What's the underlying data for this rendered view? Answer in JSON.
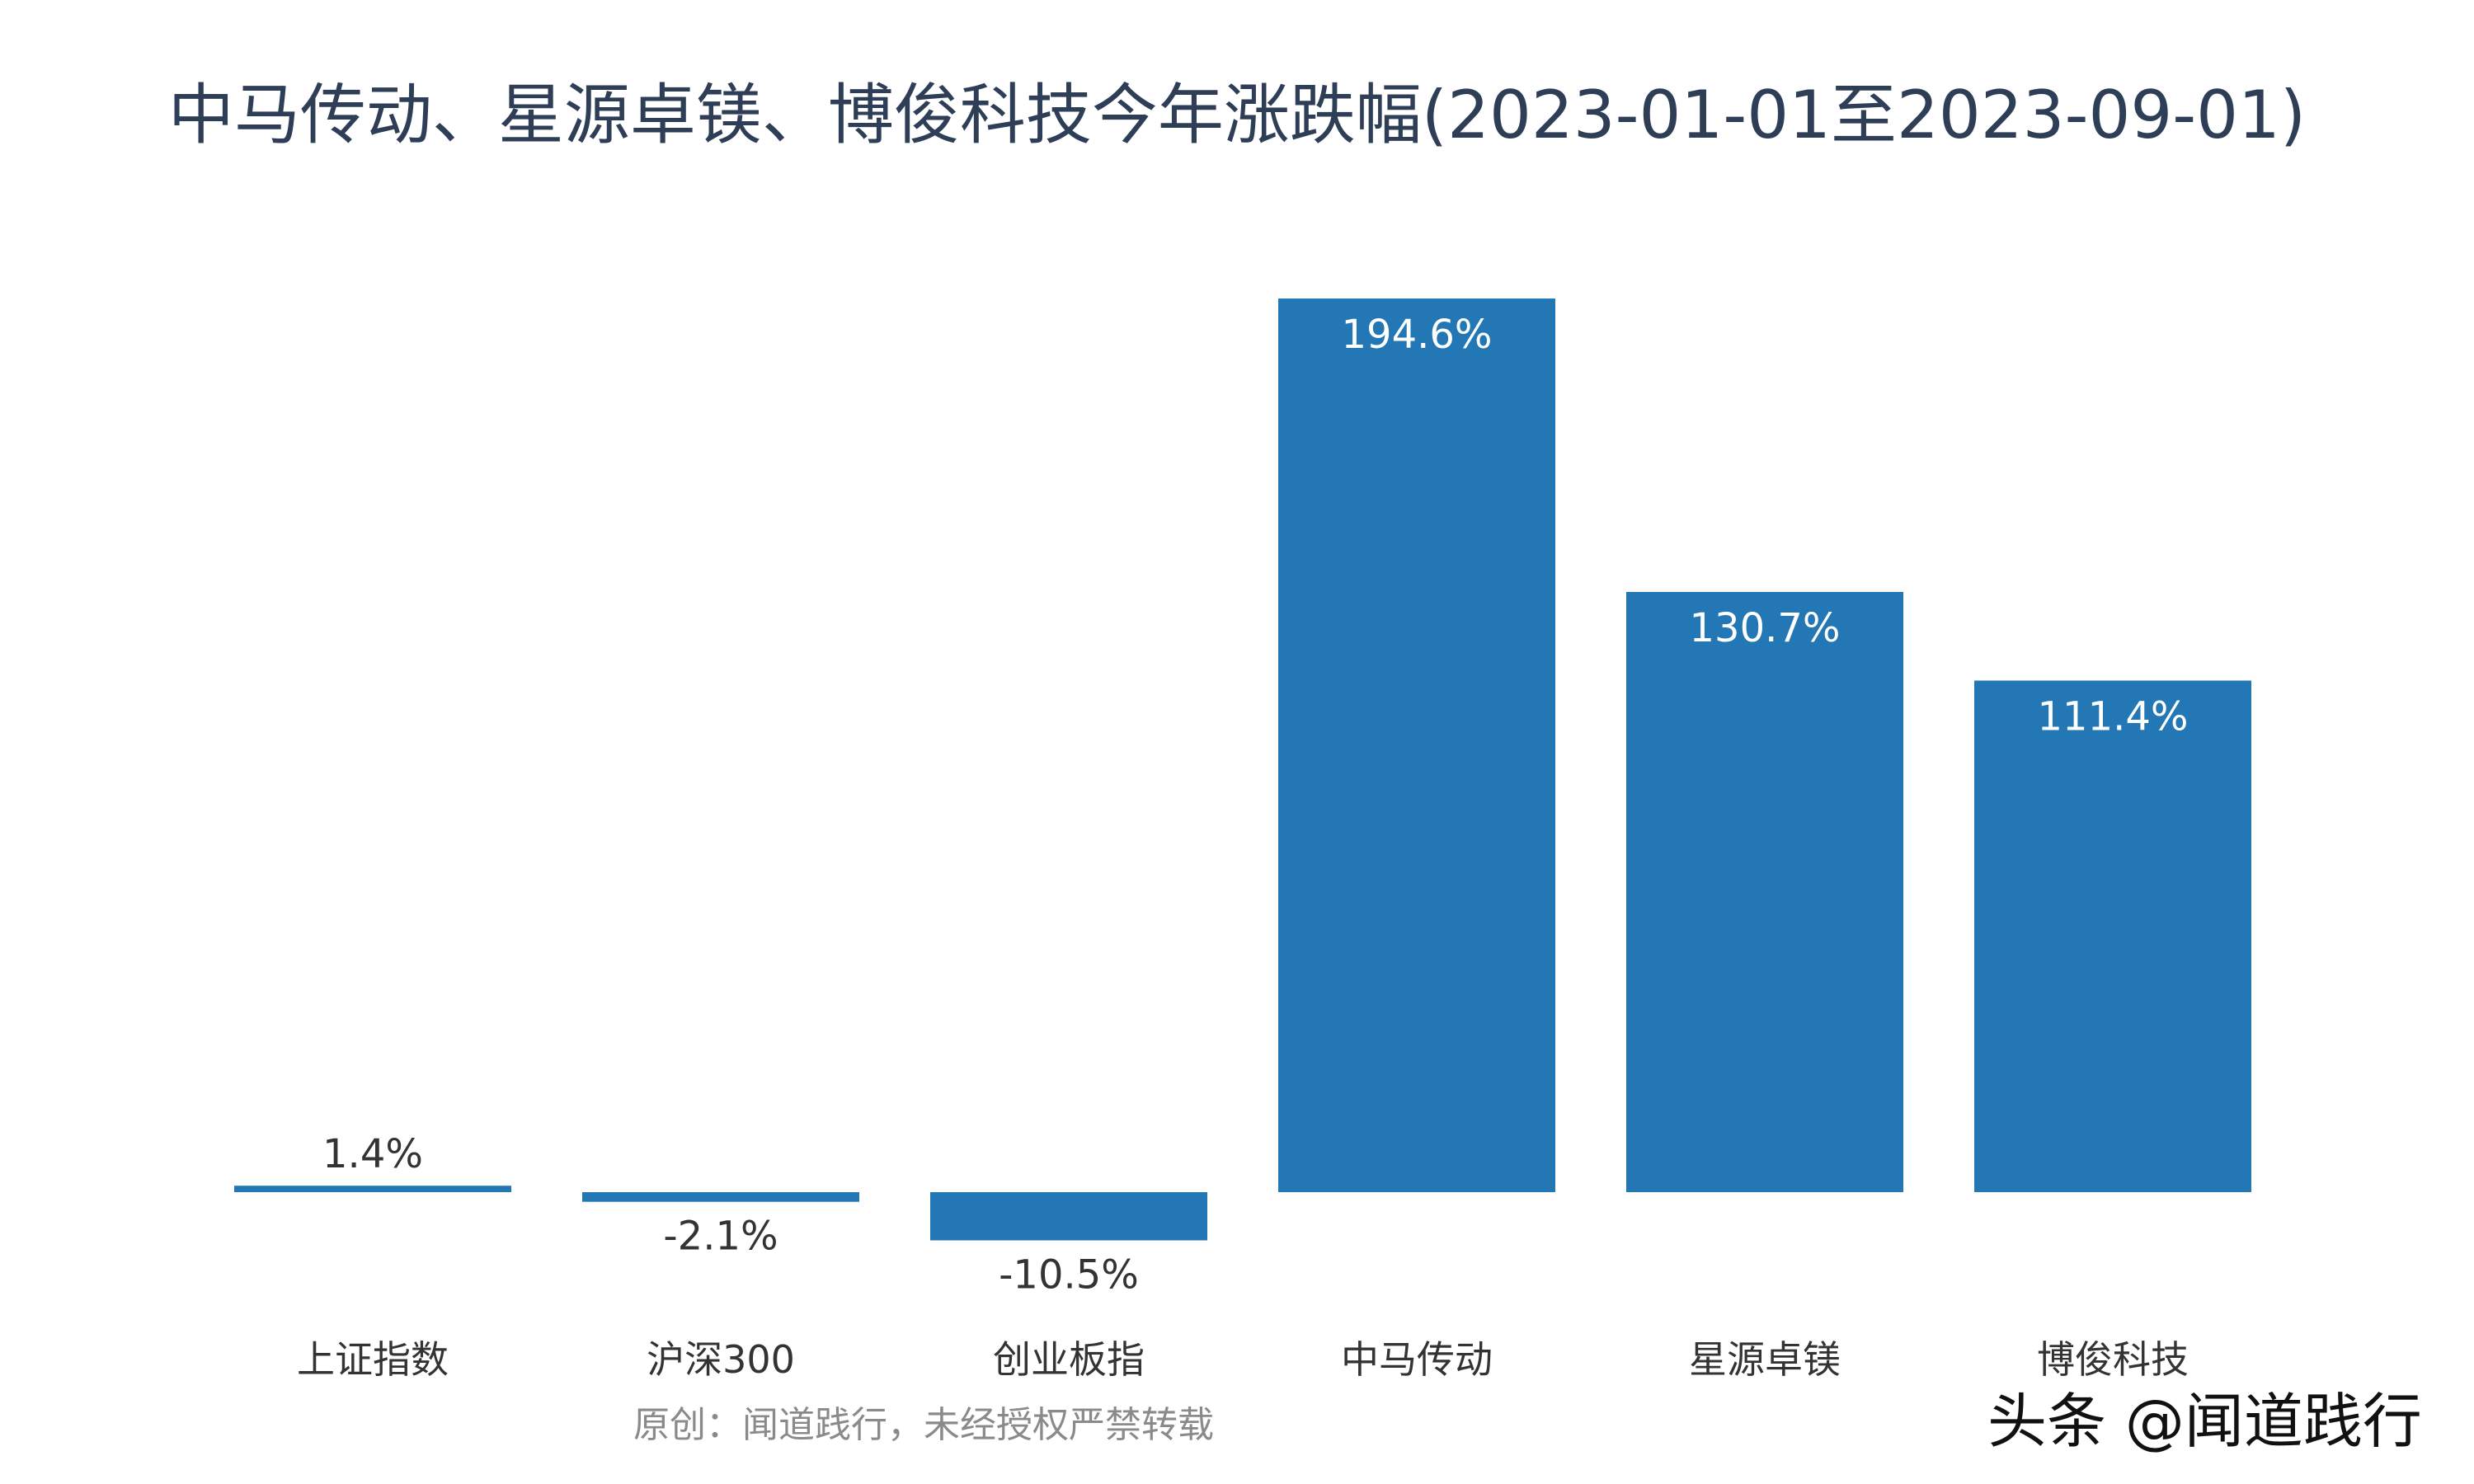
{
  "chart_data": {
    "type": "bar",
    "title": "中马传动、星源卓镁、博俊科技今年涨跌幅(2023-01-01至2023-09-01)",
    "categories": [
      "上证指数",
      "沪深300",
      "创业板指",
      "中马传动",
      "星源卓镁",
      "博俊科技"
    ],
    "values": [
      1.4,
      -2.1,
      -10.5,
      194.6,
      130.7,
      111.4
    ],
    "value_labels": [
      "1.4%",
      "-2.1%",
      "-10.5%",
      "194.6%",
      "130.7%",
      "111.4%"
    ],
    "unit": "%",
    "ylim": [
      -12,
      200
    ],
    "grid": false,
    "legend": "none",
    "bar_color": "#2277b4",
    "inside_label_color": "#ffffff",
    "outside_label_color": "#333333",
    "category_label_color": "#333333"
  },
  "footnote": "原创：闻道践行，未经授权严禁转载",
  "watermark": "头条 @闻道践行"
}
